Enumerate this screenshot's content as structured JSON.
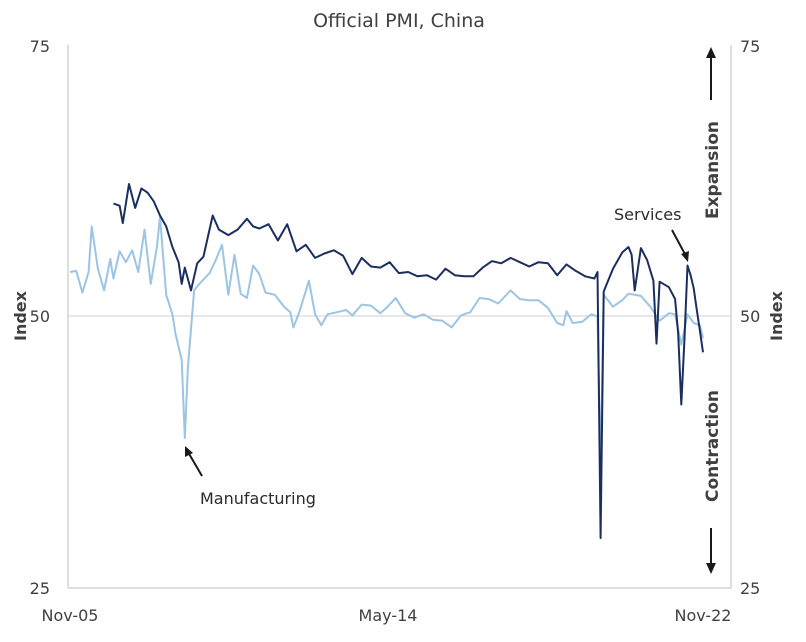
{
  "chart_data": {
    "type": "line",
    "title": "Official PMI, China",
    "ylabel_left": "Index",
    "ylabel_right": "Index",
    "ylim": [
      25,
      75
    ],
    "y_ticks": [
      "25",
      "50",
      "75"
    ],
    "x_ticks": [
      "Nov-05",
      "May-14",
      "Nov-22"
    ],
    "x_range": [
      "2005-11",
      "2022-11"
    ],
    "reference_line": 50,
    "grid": false,
    "annotations": {
      "services": "Services",
      "manufacturing": "Manufacturing",
      "expansion": "Expansion",
      "contraction": "Contraction"
    },
    "colors": {
      "services": "#1b2f5e",
      "manufacturing": "#9cc4e4",
      "axis": "#bfbfbf"
    },
    "series": [
      {
        "key": "manufacturing",
        "points": [
          [
            "2005-11",
            54.1
          ],
          [
            "2006-01",
            54.2
          ],
          [
            "2006-03",
            52.2
          ],
          [
            "2006-05",
            54.1
          ],
          [
            "2006-06",
            58.3
          ],
          [
            "2006-08",
            54.4
          ],
          [
            "2006-10",
            52.4
          ],
          [
            "2006-12",
            55.3
          ],
          [
            "2007-01",
            53.5
          ],
          [
            "2007-03",
            56.0
          ],
          [
            "2007-05",
            55.0
          ],
          [
            "2007-07",
            56.1
          ],
          [
            "2007-09",
            54.1
          ],
          [
            "2007-11",
            58.0
          ],
          [
            "2008-01",
            53.0
          ],
          [
            "2008-03",
            56.4
          ],
          [
            "2008-04",
            59.2
          ],
          [
            "2008-06",
            52.0
          ],
          [
            "2008-08",
            50.2
          ],
          [
            "2008-09",
            48.4
          ],
          [
            "2008-11",
            46.0
          ],
          [
            "2008-12",
            38.8
          ],
          [
            "2009-01",
            45.3
          ],
          [
            "2009-03",
            52.4
          ],
          [
            "2009-05",
            53.1
          ],
          [
            "2009-08",
            54.0
          ],
          [
            "2009-10",
            55.2
          ],
          [
            "2009-12",
            56.6
          ],
          [
            "2010-02",
            52.0
          ],
          [
            "2010-04",
            55.7
          ],
          [
            "2010-06",
            52.1
          ],
          [
            "2010-08",
            51.7
          ],
          [
            "2010-10",
            54.7
          ],
          [
            "2010-12",
            53.9
          ],
          [
            "2011-02",
            52.2
          ],
          [
            "2011-05",
            52.0
          ],
          [
            "2011-08",
            50.9
          ],
          [
            "2011-10",
            50.4
          ],
          [
            "2011-11",
            49.0
          ],
          [
            "2012-01",
            50.5
          ],
          [
            "2012-04",
            53.3
          ],
          [
            "2012-06",
            50.2
          ],
          [
            "2012-08",
            49.2
          ],
          [
            "2012-10",
            50.2
          ],
          [
            "2013-01",
            50.4
          ],
          [
            "2013-04",
            50.6
          ],
          [
            "2013-06",
            50.1
          ],
          [
            "2013-09",
            51.1
          ],
          [
            "2013-12",
            51.0
          ],
          [
            "2014-03",
            50.3
          ],
          [
            "2014-05",
            50.8
          ],
          [
            "2014-08",
            51.7
          ],
          [
            "2014-11",
            50.3
          ],
          [
            "2015-02",
            49.9
          ],
          [
            "2015-05",
            50.2
          ],
          [
            "2015-08",
            49.7
          ],
          [
            "2015-11",
            49.6
          ],
          [
            "2016-02",
            49.0
          ],
          [
            "2016-05",
            50.1
          ],
          [
            "2016-08",
            50.4
          ],
          [
            "2016-11",
            51.7
          ],
          [
            "2017-02",
            51.6
          ],
          [
            "2017-05",
            51.2
          ],
          [
            "2017-09",
            52.4
          ],
          [
            "2017-12",
            51.6
          ],
          [
            "2018-03",
            51.5
          ],
          [
            "2018-06",
            51.5
          ],
          [
            "2018-09",
            50.8
          ],
          [
            "2018-12",
            49.4
          ],
          [
            "2019-02",
            49.2
          ],
          [
            "2019-03",
            50.5
          ],
          [
            "2019-05",
            49.4
          ],
          [
            "2019-08",
            49.5
          ],
          [
            "2019-11",
            50.2
          ],
          [
            "2020-01",
            50.0
          ],
          [
            "2020-02",
            35.7
          ],
          [
            "2020-03",
            52.0
          ],
          [
            "2020-06",
            50.9
          ],
          [
            "2020-09",
            51.5
          ],
          [
            "2020-11",
            52.1
          ],
          [
            "2021-03",
            51.9
          ],
          [
            "2021-06",
            50.9
          ],
          [
            "2021-09",
            49.6
          ],
          [
            "2021-12",
            50.3
          ],
          [
            "2022-02",
            50.2
          ],
          [
            "2022-04",
            47.4
          ],
          [
            "2022-06",
            50.2
          ],
          [
            "2022-08",
            49.4
          ],
          [
            "2022-10",
            49.2
          ],
          [
            "2022-11",
            48.0
          ]
        ]
      },
      {
        "key": "services",
        "points": [
          [
            "2007-01",
            60.4
          ],
          [
            "2007-03",
            60.2
          ],
          [
            "2007-04",
            58.6
          ],
          [
            "2007-06",
            62.2
          ],
          [
            "2007-08",
            60.0
          ],
          [
            "2007-10",
            61.8
          ],
          [
            "2007-12",
            61.4
          ],
          [
            "2008-02",
            60.6
          ],
          [
            "2008-04",
            59.3
          ],
          [
            "2008-06",
            58.3
          ],
          [
            "2008-08",
            56.4
          ],
          [
            "2008-10",
            55.0
          ],
          [
            "2008-11",
            53.0
          ],
          [
            "2008-12",
            54.5
          ],
          [
            "2009-02",
            52.4
          ],
          [
            "2009-04",
            54.9
          ],
          [
            "2009-06",
            55.5
          ],
          [
            "2009-09",
            59.3
          ],
          [
            "2009-11",
            58.0
          ],
          [
            "2010-02",
            57.5
          ],
          [
            "2010-05",
            58.0
          ],
          [
            "2010-08",
            59.0
          ],
          [
            "2010-10",
            58.3
          ],
          [
            "2010-12",
            58.1
          ],
          [
            "2011-03",
            58.5
          ],
          [
            "2011-06",
            57.0
          ],
          [
            "2011-09",
            58.5
          ],
          [
            "2011-12",
            56.0
          ],
          [
            "2012-03",
            56.6
          ],
          [
            "2012-06",
            55.4
          ],
          [
            "2012-09",
            55.8
          ],
          [
            "2012-12",
            56.1
          ],
          [
            "2013-03",
            55.6
          ],
          [
            "2013-06",
            53.9
          ],
          [
            "2013-09",
            55.4
          ],
          [
            "2013-12",
            54.6
          ],
          [
            "2014-03",
            54.5
          ],
          [
            "2014-06",
            55.0
          ],
          [
            "2014-09",
            54.0
          ],
          [
            "2014-12",
            54.1
          ],
          [
            "2015-03",
            53.7
          ],
          [
            "2015-06",
            53.8
          ],
          [
            "2015-09",
            53.4
          ],
          [
            "2015-12",
            54.4
          ],
          [
            "2016-03",
            53.8
          ],
          [
            "2016-06",
            53.7
          ],
          [
            "2016-09",
            53.7
          ],
          [
            "2016-12",
            54.5
          ],
          [
            "2017-03",
            55.1
          ],
          [
            "2017-06",
            54.9
          ],
          [
            "2017-09",
            55.4
          ],
          [
            "2017-12",
            55.0
          ],
          [
            "2018-03",
            54.6
          ],
          [
            "2018-06",
            55.0
          ],
          [
            "2018-09",
            54.9
          ],
          [
            "2018-12",
            53.8
          ],
          [
            "2019-03",
            54.8
          ],
          [
            "2019-06",
            54.2
          ],
          [
            "2019-09",
            53.7
          ],
          [
            "2019-12",
            53.5
          ],
          [
            "2020-01",
            54.1
          ],
          [
            "2020-02",
            29.6
          ],
          [
            "2020-03",
            52.3
          ],
          [
            "2020-06",
            54.4
          ],
          [
            "2020-09",
            55.9
          ],
          [
            "2020-11",
            56.4
          ],
          [
            "2020-12",
            55.7
          ],
          [
            "2021-01",
            52.4
          ],
          [
            "2021-03",
            56.3
          ],
          [
            "2021-05",
            55.2
          ],
          [
            "2021-07",
            53.3
          ],
          [
            "2021-08",
            47.5
          ],
          [
            "2021-09",
            53.2
          ],
          [
            "2021-12",
            52.7
          ],
          [
            "2022-02",
            51.6
          ],
          [
            "2022-03",
            48.4
          ],
          [
            "2022-04",
            41.9
          ],
          [
            "2022-05",
            47.8
          ],
          [
            "2022-06",
            54.7
          ],
          [
            "2022-07",
            53.8
          ],
          [
            "2022-08",
            52.6
          ],
          [
            "2022-09",
            50.6
          ],
          [
            "2022-10",
            48.7
          ],
          [
            "2022-11",
            46.7
          ]
        ]
      }
    ]
  }
}
